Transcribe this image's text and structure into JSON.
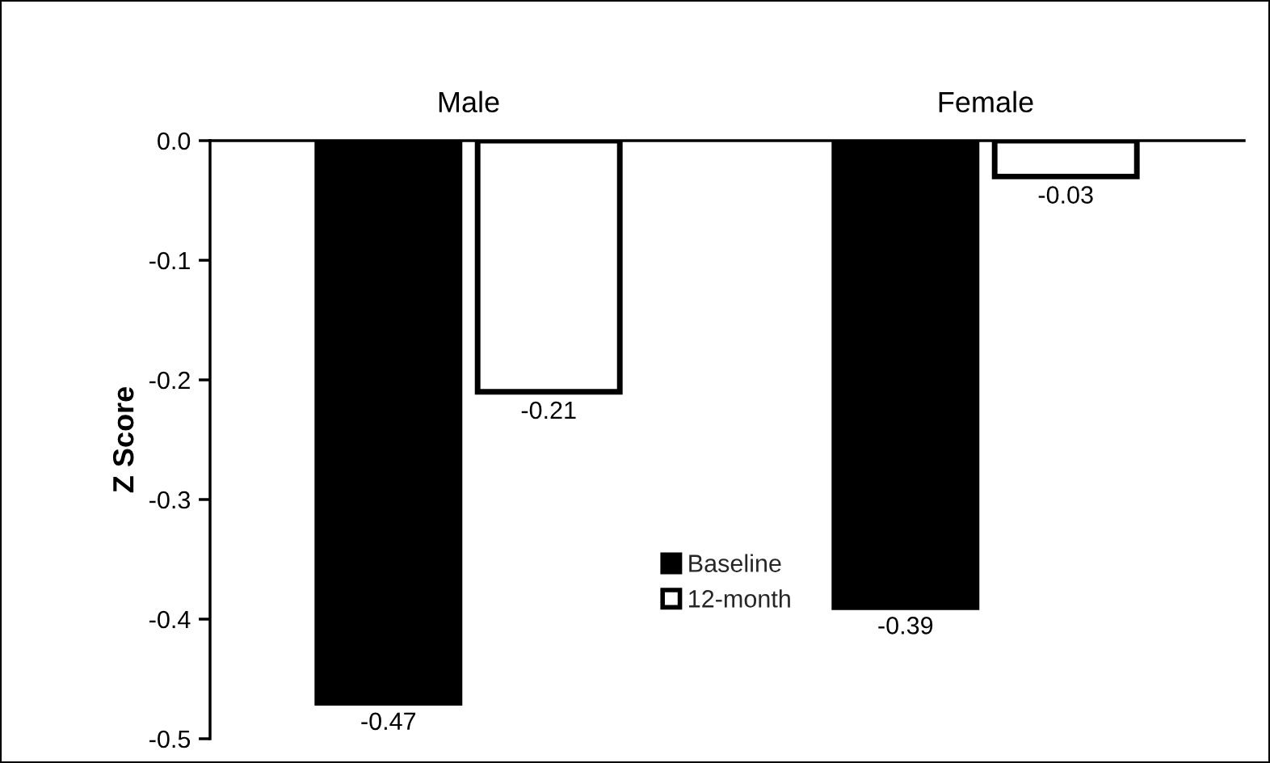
{
  "chart_data": {
    "type": "bar",
    "ylabel": "Z Score",
    "categories": [
      "Male",
      "Female"
    ],
    "series": [
      {
        "name": "Baseline",
        "color": "#000000",
        "values": [
          -0.47,
          -0.39
        ]
      },
      {
        "name": "12-month",
        "color": "#ffffff",
        "values": [
          -0.21,
          -0.03
        ]
      }
    ],
    "ylim": [
      -0.5,
      0
    ],
    "yticks": [
      {
        "value": 0,
        "label": "0.0"
      },
      -0.1,
      -0.2,
      -0.3,
      -0.4,
      -0.5
    ],
    "data_labels": true,
    "grid": false,
    "legend": "bottom"
  }
}
